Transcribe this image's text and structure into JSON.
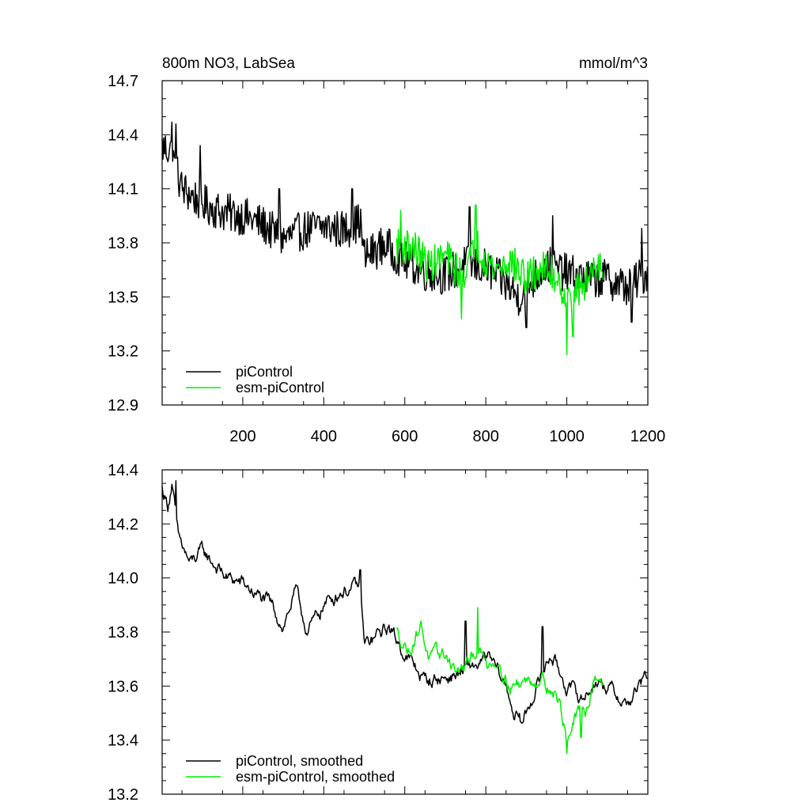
{
  "colors": {
    "piControl": "#000000",
    "esm_piControl": "#00ee00"
  },
  "chart_data": [
    {
      "type": "line",
      "title": "800m NO3, LabSea",
      "units": "mmol/m^3",
      "xlim": [
        1,
        1200
      ],
      "ylim": [
        12.9,
        14.7
      ],
      "xticks": [
        200,
        400,
        600,
        800,
        1000,
        1200
      ],
      "xtick_labels": [
        "200",
        "400",
        "600",
        "800",
        "1000",
        "1200"
      ],
      "yticks": [
        12.9,
        13.2,
        13.5,
        13.8,
        14.1,
        14.4,
        14.7
      ],
      "ytick_labels": [
        "12.9",
        "13.2",
        "13.5",
        "13.8",
        "14.1",
        "14.4",
        "14.7"
      ],
      "smoothed": false,
      "legend_position": "bottom-left",
      "series": [
        {
          "name": "piControl",
          "color": "#000000",
          "x_range": [
            1,
            1200
          ],
          "trend": [
            [
              1,
              14.33
            ],
            [
              20,
              14.32
            ],
            [
              50,
              14.1
            ],
            [
              100,
              14.02
            ],
            [
              150,
              13.97
            ],
            [
              200,
              13.95
            ],
            [
              250,
              13.9
            ],
            [
              300,
              13.82
            ],
            [
              350,
              13.87
            ],
            [
              400,
              13.89
            ],
            [
              450,
              13.87
            ],
            [
              490,
              13.92
            ],
            [
              500,
              13.72
            ],
            [
              550,
              13.79
            ],
            [
              600,
              13.7
            ],
            [
              650,
              13.64
            ],
            [
              700,
              13.62
            ],
            [
              750,
              13.68
            ],
            [
              800,
              13.66
            ],
            [
              850,
              13.57
            ],
            [
              880,
              13.5
            ],
            [
              900,
              13.55
            ],
            [
              950,
              13.68
            ],
            [
              1000,
              13.63
            ],
            [
              1050,
              13.6
            ],
            [
              1100,
              13.6
            ],
            [
              1150,
              13.55
            ],
            [
              1200,
              13.64
            ]
          ],
          "noise_amplitude": 0.11,
          "spikes": [
            [
              25,
              14.47
            ],
            [
              35,
              14.46
            ],
            [
              95,
              14.34
            ],
            [
              290,
              14.1
            ],
            [
              470,
              14.1
            ],
            [
              760,
              14.0
            ],
            [
              900,
              13.33
            ],
            [
              965,
              13.95
            ],
            [
              1160,
              13.36
            ],
            [
              1185,
              13.88
            ]
          ]
        },
        {
          "name": "esm-piControl",
          "color": "#00ee00",
          "x_range": [
            580,
            1090
          ],
          "trend": [
            [
              580,
              13.78
            ],
            [
              620,
              13.78
            ],
            [
              660,
              13.67
            ],
            [
              700,
              13.73
            ],
            [
              740,
              13.62
            ],
            [
              780,
              13.78
            ],
            [
              820,
              13.65
            ],
            [
              860,
              13.7
            ],
            [
              900,
              13.6
            ],
            [
              940,
              13.66
            ],
            [
              980,
              13.6
            ],
            [
              1000,
              13.48
            ],
            [
              1020,
              13.52
            ],
            [
              1050,
              13.58
            ],
            [
              1070,
              13.7
            ],
            [
              1090,
              13.68
            ]
          ],
          "noise_amplitude": 0.1,
          "spikes": [
            [
              590,
              13.98
            ],
            [
              740,
              13.38
            ],
            [
              775,
              14.01
            ],
            [
              1000,
              13.18
            ],
            [
              1015,
              13.28
            ]
          ]
        }
      ]
    },
    {
      "type": "line",
      "xlim": [
        1,
        1200
      ],
      "ylim": [
        13.2,
        14.4
      ],
      "xticks": [
        200,
        400,
        600,
        800,
        1000,
        1200
      ],
      "xtick_labels": [],
      "yticks": [
        13.2,
        13.4,
        13.6,
        13.8,
        14.0,
        14.2,
        14.4
      ],
      "ytick_labels": [
        "13.2",
        "13.4",
        "13.6",
        "13.8",
        "14.0",
        "14.2",
        "14.4"
      ],
      "smoothed": true,
      "legend_position": "bottom-left",
      "series": [
        {
          "name": "piControl, smoothed",
          "color": "#000000",
          "x_range": [
            1,
            1200
          ],
          "trend": [
            [
              1,
              14.33
            ],
            [
              15,
              14.27
            ],
            [
              25,
              14.35
            ],
            [
              40,
              14.15
            ],
            [
              70,
              14.05
            ],
            [
              100,
              14.1
            ],
            [
              130,
              14.05
            ],
            [
              160,
              14.0
            ],
            [
              200,
              13.98
            ],
            [
              240,
              13.93
            ],
            [
              270,
              13.9
            ],
            [
              300,
              13.82
            ],
            [
              330,
              13.95
            ],
            [
              360,
              13.8
            ],
            [
              400,
              13.9
            ],
            [
              440,
              13.95
            ],
            [
              490,
              13.97
            ],
            [
              500,
              13.75
            ],
            [
              520,
              13.77
            ],
            [
              560,
              13.82
            ],
            [
              600,
              13.72
            ],
            [
              650,
              13.62
            ],
            [
              700,
              13.63
            ],
            [
              740,
              13.65
            ],
            [
              780,
              13.68
            ],
            [
              810,
              13.7
            ],
            [
              850,
              13.6
            ],
            [
              870,
              13.5
            ],
            [
              890,
              13.46
            ],
            [
              920,
              13.58
            ],
            [
              960,
              13.72
            ],
            [
              1000,
              13.6
            ],
            [
              1040,
              13.55
            ],
            [
              1070,
              13.62
            ],
            [
              1100,
              13.6
            ],
            [
              1150,
              13.53
            ],
            [
              1180,
              13.6
            ],
            [
              1200,
              13.64
            ]
          ],
          "noise_amplitude": 0.035,
          "spikes": [
            [
              35,
              14.36
            ],
            [
              490,
              14.03
            ],
            [
              750,
              13.84
            ],
            [
              940,
              13.82
            ]
          ]
        },
        {
          "name": "esm-piControl, smoothed",
          "color": "#00ee00",
          "x_range": [
            580,
            1090
          ],
          "trend": [
            [
              580,
              13.8
            ],
            [
              610,
              13.73
            ],
            [
              640,
              13.83
            ],
            [
              660,
              13.7
            ],
            [
              700,
              13.72
            ],
            [
              730,
              13.65
            ],
            [
              760,
              13.68
            ],
            [
              780,
              13.75
            ],
            [
              800,
              13.68
            ],
            [
              830,
              13.7
            ],
            [
              860,
              13.6
            ],
            [
              900,
              13.62
            ],
            [
              940,
              13.63
            ],
            [
              980,
              13.55
            ],
            [
              1000,
              13.4
            ],
            [
              1020,
              13.48
            ],
            [
              1050,
              13.52
            ],
            [
              1070,
              13.65
            ],
            [
              1090,
              13.62
            ]
          ],
          "noise_amplitude": 0.035,
          "spikes": [
            [
              780,
              13.89
            ],
            [
              1000,
              13.35
            ],
            [
              1035,
              13.41
            ]
          ]
        }
      ]
    }
  ]
}
